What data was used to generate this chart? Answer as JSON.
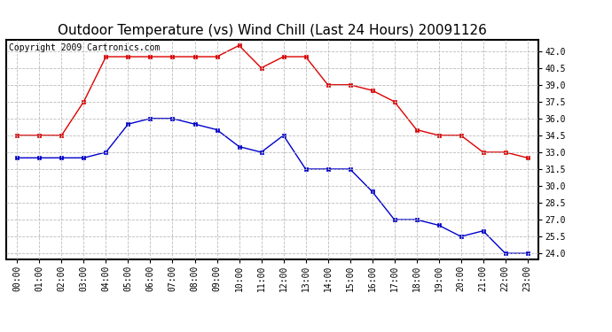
{
  "title": "Outdoor Temperature (vs) Wind Chill (Last 24 Hours) 20091126",
  "copyright_text": "Copyright 2009 Cartronics.com",
  "hours": [
    0,
    1,
    2,
    3,
    4,
    5,
    6,
    7,
    8,
    9,
    10,
    11,
    12,
    13,
    14,
    15,
    16,
    17,
    18,
    19,
    20,
    21,
    22,
    23
  ],
  "red_data": [
    34.5,
    34.5,
    34.5,
    37.5,
    41.5,
    41.5,
    41.5,
    41.5,
    41.5,
    41.5,
    42.5,
    40.5,
    41.5,
    41.5,
    39.0,
    39.0,
    38.5,
    37.5,
    35.0,
    34.5,
    34.5,
    33.0,
    33.0,
    32.5
  ],
  "blue_data": [
    32.5,
    32.5,
    32.5,
    32.5,
    33.0,
    35.5,
    36.0,
    36.0,
    35.5,
    35.0,
    33.5,
    33.0,
    34.5,
    31.5,
    31.5,
    31.5,
    29.5,
    27.0,
    27.0,
    26.5,
    25.5,
    26.0,
    24.0,
    24.0
  ],
  "ylim_min": 23.5,
  "ylim_max": 43.0,
  "yticks": [
    24.0,
    25.5,
    27.0,
    28.5,
    30.0,
    31.5,
    33.0,
    34.5,
    36.0,
    37.5,
    39.0,
    40.5,
    42.0
  ],
  "background_color": "#ffffff",
  "plot_bg_color": "#ffffff",
  "grid_color": "#bbbbbb",
  "red_color": "#dd0000",
  "blue_color": "#0000cc",
  "title_fontsize": 11,
  "copyright_fontsize": 7,
  "tick_fontsize": 7,
  "marker_size": 3
}
